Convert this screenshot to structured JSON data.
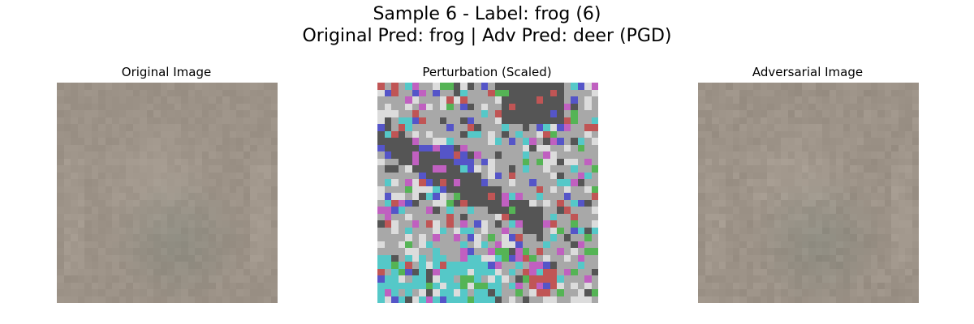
{
  "figure": {
    "suptitle_line1": "Sample 6 - Label: frog (6)",
    "suptitle_line2": "Original Pred: frog | Adv Pred: deer (PGD)"
  },
  "panels": [
    {
      "title": "Original Image",
      "image": "original-image"
    },
    {
      "title": "Perturbation (Scaled)",
      "image": "perturbation-heatmap"
    },
    {
      "title": "Adversarial Image",
      "image": "adversarial-image"
    }
  ],
  "colors": {
    "original_base": "#9c9287",
    "original_dark": "#7f857a",
    "perturbation_gray": "#a8a8a8",
    "perturbation_dark": "#555555",
    "perturbation_blue": "#5555c8",
    "perturbation_magenta": "#c060c0",
    "perturbation_cyan": "#55c8c8",
    "perturbation_green": "#55b455",
    "perturbation_red": "#c05555",
    "perturbation_light": "#dcdcdc"
  }
}
